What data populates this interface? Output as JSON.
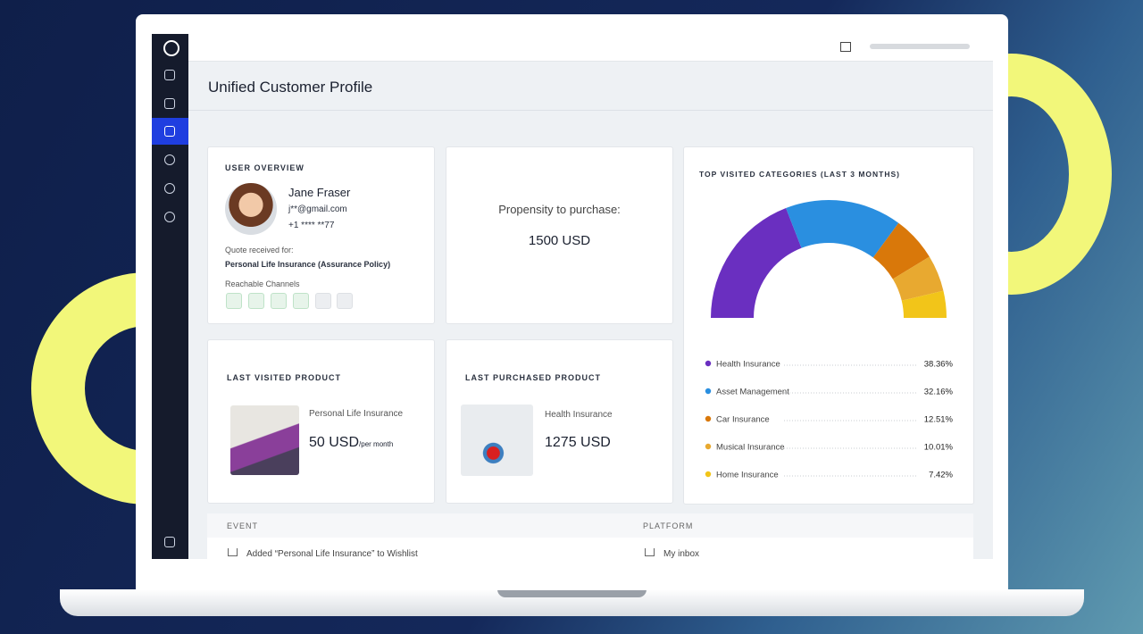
{
  "page": {
    "title": "Unified Customer Profile"
  },
  "user_overview": {
    "heading": "USER OVERVIEW",
    "name": "Jane Fraser",
    "email": "j**@gmail.com",
    "phone": "+1 **** **77",
    "quote_label": "Quote received for:",
    "quote_product": "Personal Life Insurance (Assurance Policy)",
    "channels_label": "Reachable Channels"
  },
  "propensity": {
    "label": "Propensity to purchase:",
    "value": "1500 USD"
  },
  "last_visited": {
    "heading": "LAST VISITED PRODUCT",
    "product": "Personal Life Insurance",
    "price": "50 USD",
    "unit": "/per month"
  },
  "last_purchased": {
    "heading": "LAST PURCHASED PRODUCT",
    "product": "Health Insurance",
    "price": "1275 USD"
  },
  "top_categories": {
    "title": "TOP VISITED CATEGORIES (LAST 3 MONTHS)",
    "names": [
      "Health Insurance",
      "Asset Management",
      "Car Insurance",
      "Musical Insurance",
      "Home Insurance"
    ],
    "values": [
      38.36,
      32.16,
      12.51,
      10.01,
      7.42
    ],
    "value_labels": [
      "38.36%",
      "32.16%",
      "12.51%",
      "10.01%",
      "7.42%"
    ],
    "colors": [
      "#6a2fc0",
      "#2a8fe0",
      "#d9780a",
      "#e8a930",
      "#f2c519"
    ]
  },
  "events": {
    "headers": [
      "EVENT",
      "PLATFORM"
    ],
    "rows": [
      [
        "Added “Personal Life Insurance” to Wishlist",
        "My inbox"
      ]
    ]
  }
}
